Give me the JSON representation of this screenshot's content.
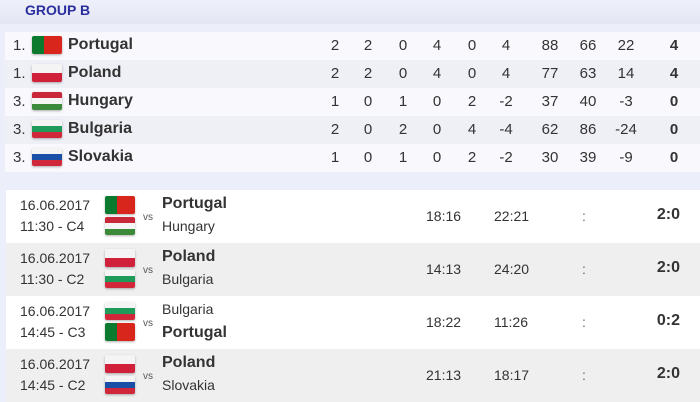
{
  "group_title": "GROUP B",
  "flags": {
    "Portugal": {
      "icon": "portugal-flag-icon",
      "colors": [
        "#0b7a2e",
        "#d8261c"
      ]
    },
    "Poland": {
      "icon": "poland-flag-icon",
      "colors": [
        "#f4f4f4",
        "#d0203a"
      ]
    },
    "Hungary": {
      "icon": "hungary-flag-icon",
      "colors": [
        "#c8283a",
        "#f4f4f4",
        "#3a8a3a"
      ]
    },
    "Bulgaria": {
      "icon": "bulgaria-flag-icon",
      "colors": [
        "#f4f4f4",
        "#1e9a5a",
        "#d0283a"
      ]
    },
    "Slovakia": {
      "icon": "slovakia-flag-icon",
      "colors": [
        "#f4f4f4",
        "#1a4fa8",
        "#d0283a"
      ]
    }
  },
  "standings": [
    {
      "rank": "1.",
      "team": "Portugal",
      "cols": [
        "2",
        "2",
        "0",
        "4",
        "0",
        "4",
        "88",
        "66",
        "22"
      ],
      "points": "4"
    },
    {
      "rank": "1.",
      "team": "Poland",
      "cols": [
        "2",
        "2",
        "0",
        "4",
        "0",
        "4",
        "77",
        "63",
        "14"
      ],
      "points": "4"
    },
    {
      "rank": "3.",
      "team": "Hungary",
      "cols": [
        "1",
        "0",
        "1",
        "0",
        "2",
        "-2",
        "37",
        "40",
        "-3"
      ],
      "points": "0"
    },
    {
      "rank": "3.",
      "team": "Bulgaria",
      "cols": [
        "2",
        "0",
        "2",
        "0",
        "4",
        "-4",
        "62",
        "86",
        "-24"
      ],
      "points": "0"
    },
    {
      "rank": "3.",
      "team": "Slovakia",
      "cols": [
        "1",
        "0",
        "1",
        "0",
        "2",
        "-2",
        "30",
        "39",
        "-9"
      ],
      "points": "0"
    }
  ],
  "matches": [
    {
      "date": "16.06.2017",
      "time": "11:30 - C4",
      "home": "Portugal",
      "away": "Hungary",
      "winner": "home",
      "vs": "vs",
      "set1": "18:16",
      "set2": "22:21",
      "set3": ":",
      "score": "2:0"
    },
    {
      "date": "16.06.2017",
      "time": "11:30 - C2",
      "home": "Poland",
      "away": "Bulgaria",
      "winner": "home",
      "vs": "vs",
      "set1": "14:13",
      "set2": "24:20",
      "set3": ":",
      "score": "2:0"
    },
    {
      "date": "16.06.2017",
      "time": "14:45 - C3",
      "home": "Bulgaria",
      "away": "Portugal",
      "winner": "away",
      "vs": "vs",
      "set1": "18:22",
      "set2": "11:26",
      "set3": ":",
      "score": "0:2"
    },
    {
      "date": "16.06.2017",
      "time": "14:45 - C2",
      "home": "Poland",
      "away": "Slovakia",
      "winner": "home",
      "vs": "vs",
      "set1": "21:13",
      "set2": "18:17",
      "set3": ":",
      "score": "2:0"
    }
  ]
}
